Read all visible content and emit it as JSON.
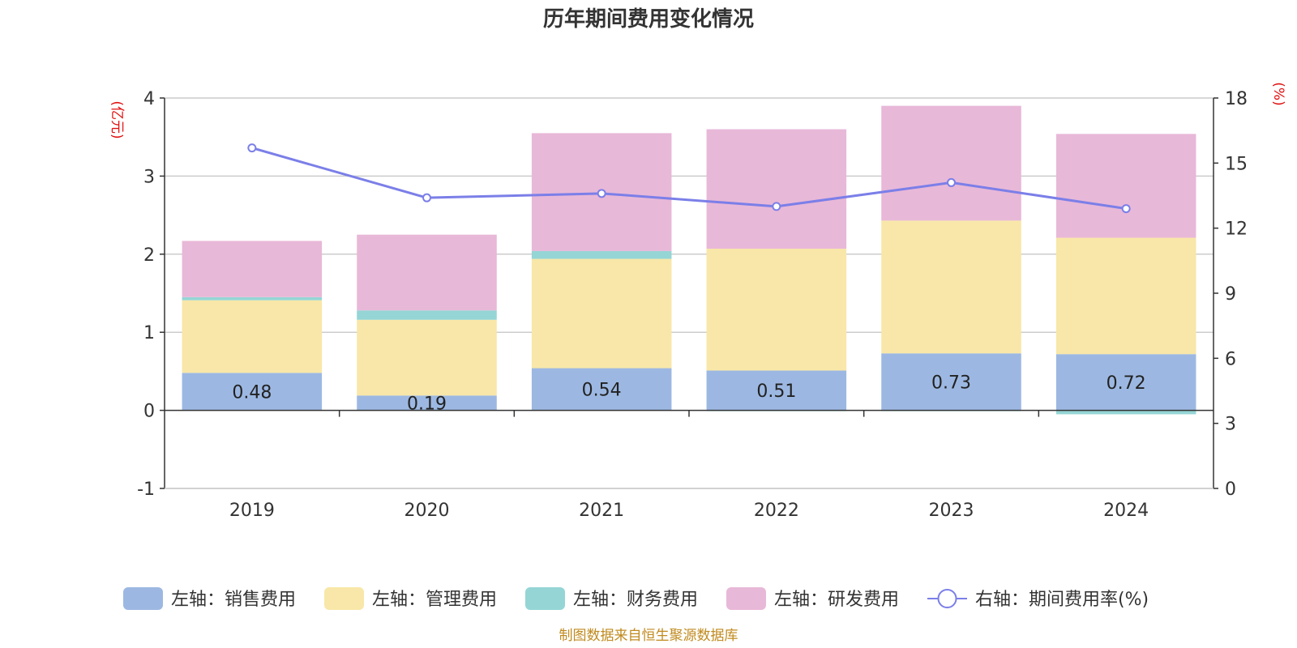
{
  "chart_data": {
    "type": "bar",
    "title": "历年期间费用变化情况",
    "categories": [
      "2019",
      "2020",
      "2021",
      "2022",
      "2023",
      "2024"
    ],
    "left_axis": {
      "unit": "(亿元)",
      "ylim": [
        -1,
        4
      ],
      "ticks": [
        "-1",
        "0",
        "1",
        "2",
        "3",
        "4"
      ]
    },
    "right_axis": {
      "unit": "(%)",
      "ylim": [
        0,
        18
      ],
      "ticks": [
        "0",
        "3",
        "6",
        "9",
        "12",
        "15",
        "18"
      ]
    },
    "stacked": true,
    "series": [
      {
        "name": "左轴：销售费用",
        "color": "#9cb8e2",
        "values": [
          0.48,
          0.19,
          0.54,
          0.51,
          0.73,
          0.72
        ],
        "labels": [
          "0.48",
          "0.19",
          "0.54",
          "0.51",
          "0.73",
          "0.72"
        ]
      },
      {
        "name": "左轴：管理费用",
        "color": "#f8e7a8",
        "values": [
          0.93,
          0.97,
          1.4,
          1.56,
          1.7,
          1.49
        ]
      },
      {
        "name": "左轴：财务费用",
        "color": "#95d5d5",
        "values": [
          0.04,
          0.12,
          0.1,
          -0.01,
          -0.01,
          -0.05
        ]
      },
      {
        "name": "左轴：研发费用",
        "color": "#e8b8d8",
        "values": [
          0.72,
          0.97,
          1.51,
          1.53,
          1.47,
          1.33
        ]
      }
    ],
    "line_series": {
      "name": "右轴：期间费用率(%)",
      "color": "#7b7fe8",
      "axis": "right",
      "values": [
        15.7,
        13.4,
        13.6,
        13.0,
        14.1,
        12.9
      ]
    },
    "grid": true,
    "legend_position": "bottom",
    "source": "制图数据来自恒生聚源数据库"
  }
}
